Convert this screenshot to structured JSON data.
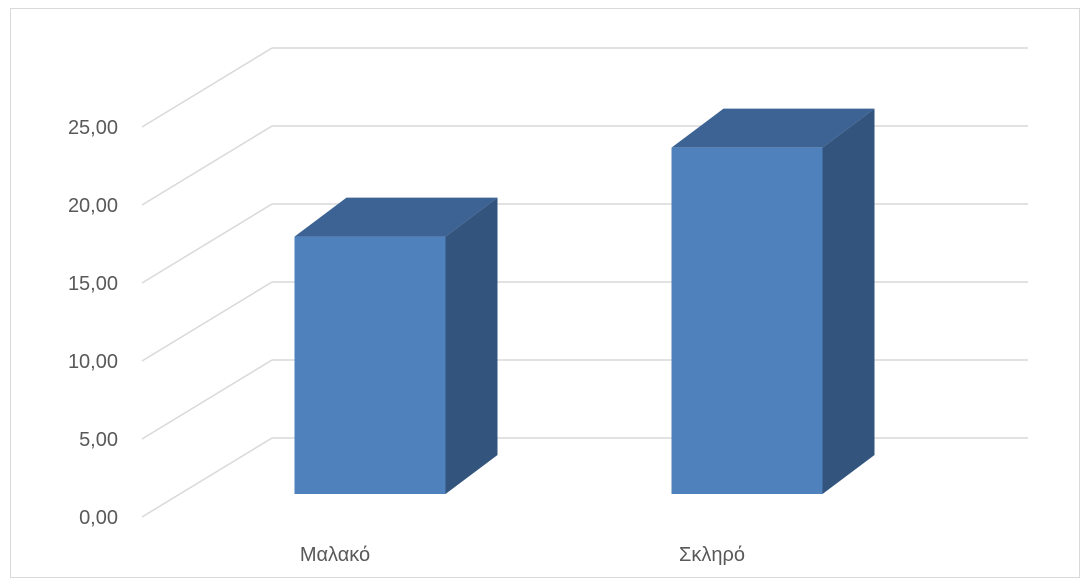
{
  "chart_data": {
    "type": "bar",
    "style": "3d-column",
    "categories": [
      "Μαλακό",
      "Σκληρό"
    ],
    "values": [
      16.5,
      22.2
    ],
    "ylim": [
      0,
      25
    ],
    "yticks": [
      "0,00",
      "5,00",
      "10,00",
      "15,00",
      "20,00",
      "25,00"
    ],
    "title": "",
    "xlabel": "",
    "ylabel": "",
    "grid": true,
    "legend": "none",
    "colors": {
      "front": "#4f81bd",
      "side": "#32547d",
      "top": "#3d6394",
      "grid": "#d9d9d9",
      "text": "#595959"
    }
  }
}
